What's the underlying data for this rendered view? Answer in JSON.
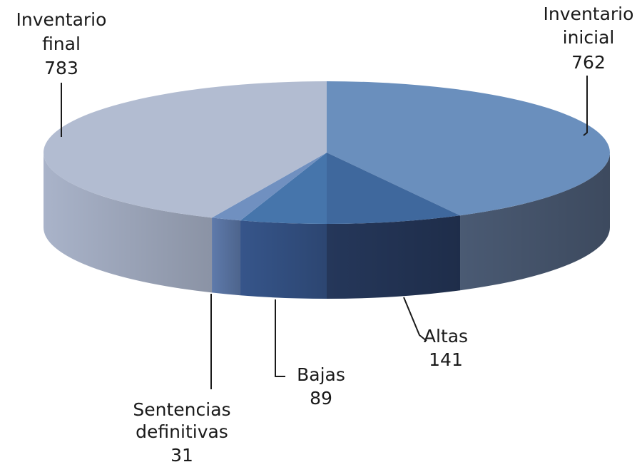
{
  "chart_data": {
    "type": "pie",
    "style": "3d",
    "slices": [
      {
        "label_lines": [
          "Inventario",
          "inicial"
        ],
        "value": 762,
        "color": "#6a8fbd",
        "side_color": "#4a5a73"
      },
      {
        "label_lines": [
          "Altas"
        ],
        "value": 141,
        "color": "#3f689d",
        "side_color": "#25375a"
      },
      {
        "label_lines": [
          "Bajas"
        ],
        "value": 89,
        "color": "#4675ab",
        "side_color": "#36558a"
      },
      {
        "label_lines": [
          "Sentencias",
          "definitivas"
        ],
        "value": 31,
        "color": "#7090c0",
        "side_color": "#5e7aab"
      },
      {
        "label_lines": [
          "Inventario",
          "final"
        ],
        "value": 783,
        "color": "#b2bcd1",
        "side_color": "#a9b3c9"
      }
    ]
  }
}
